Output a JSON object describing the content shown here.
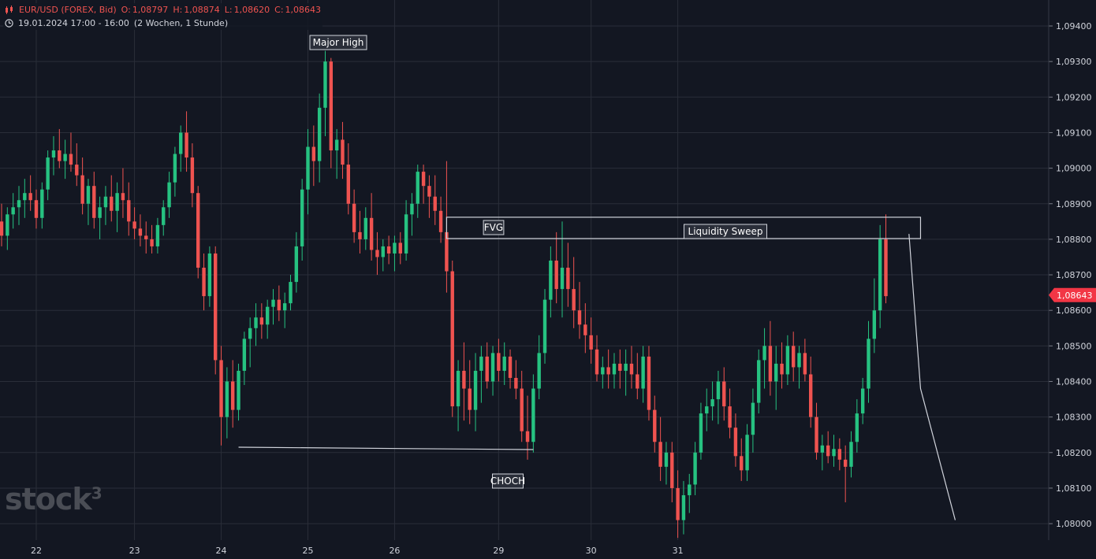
{
  "header": {
    "symbol": "EUR/USD (FOREX, Bid)",
    "open_label": "O:",
    "open": "1,08797",
    "high_label": "H:",
    "high": "1,08874",
    "low_label": "L:",
    "low": "1,08620",
    "close_label": "C:",
    "close": "1,08643",
    "range": "19.01.2024 17:00 - 16:00",
    "period": "(2 Wochen, 1 Stunde)"
  },
  "logo": {
    "text": "stock",
    "superscript": "3"
  },
  "colors": {
    "up": "#26c281",
    "down": "#ef5350",
    "background": "#131722",
    "grid": "#2a2e39",
    "text": "#d1d4dc"
  },
  "chart_data": {
    "type": "candlestick",
    "y_axis": {
      "ticks": [
        "1,09400",
        "1,09300",
        "1,09200",
        "1,09100",
        "1,09000",
        "1,08900",
        "1,08800",
        "1,08700",
        "1,08600",
        "1,08500",
        "1,08400",
        "1,08300",
        "1,08200",
        "1,08100",
        "1,08000"
      ],
      "tick_values": [
        1.094,
        1.093,
        1.092,
        1.091,
        1.09,
        1.089,
        1.088,
        1.087,
        1.086,
        1.085,
        1.084,
        1.083,
        1.082,
        1.081,
        1.08
      ],
      "range": [
        1.0797,
        1.0947
      ],
      "current_price_label": "1,08643",
      "current_price": 1.08643
    },
    "x_axis": {
      "ticks": [
        "22",
        "23",
        "24",
        "25",
        "26",
        "29",
        "30",
        "31"
      ],
      "tick_index": [
        6,
        23,
        38,
        53,
        68,
        86,
        102,
        117
      ]
    },
    "candles": [
      [
        1.0885,
        1.089,
        1.0878,
        1.0881
      ],
      [
        1.0881,
        1.0889,
        1.0877,
        1.0887
      ],
      [
        1.0887,
        1.0893,
        1.0883,
        1.0889
      ],
      [
        1.0889,
        1.0895,
        1.0884,
        1.0891
      ],
      [
        1.0891,
        1.0897,
        1.0886,
        1.0893
      ],
      [
        1.0893,
        1.0898,
        1.0888,
        1.0891
      ],
      [
        1.0891,
        1.0894,
        1.0883,
        1.0886
      ],
      [
        1.0886,
        1.0896,
        1.0883,
        1.0894
      ],
      [
        1.0894,
        1.0905,
        1.0891,
        1.0903
      ],
      [
        1.0903,
        1.0909,
        1.0898,
        1.0905
      ],
      [
        1.0905,
        1.0911,
        1.09,
        1.0902
      ],
      [
        1.0902,
        1.0908,
        1.0897,
        1.0904
      ],
      [
        1.0904,
        1.091,
        1.0899,
        1.0901
      ],
      [
        1.0901,
        1.0907,
        1.0895,
        1.0898
      ],
      [
        1.0898,
        1.0903,
        1.0887,
        1.089
      ],
      [
        1.089,
        1.0897,
        1.0884,
        1.0895
      ],
      [
        1.0895,
        1.0899,
        1.0883,
        1.0886
      ],
      [
        1.0886,
        1.0892,
        1.088,
        1.0889
      ],
      [
        1.0889,
        1.0895,
        1.0884,
        1.0892
      ],
      [
        1.0892,
        1.0898,
        1.0885,
        1.0888
      ],
      [
        1.0888,
        1.0896,
        1.0882,
        1.0893
      ],
      [
        1.0893,
        1.09,
        1.0886,
        1.0891
      ],
      [
        1.0891,
        1.0896,
        1.0881,
        1.0885
      ],
      [
        1.0885,
        1.0889,
        1.088,
        1.0883
      ],
      [
        1.0883,
        1.0887,
        1.0878,
        1.0881
      ],
      [
        1.0881,
        1.0885,
        1.0876,
        1.088
      ],
      [
        1.088,
        1.0884,
        1.0876,
        1.0878
      ],
      [
        1.0878,
        1.0886,
        1.0876,
        1.0884
      ],
      [
        1.0884,
        1.0891,
        1.0881,
        1.0889
      ],
      [
        1.0889,
        1.0899,
        1.0886,
        1.0896
      ],
      [
        1.0896,
        1.0906,
        1.0892,
        1.0904
      ],
      [
        1.0904,
        1.0912,
        1.0899,
        1.091
      ],
      [
        1.091,
        1.0916,
        1.0899,
        1.0903
      ],
      [
        1.0903,
        1.0907,
        1.0889,
        1.0893
      ],
      [
        1.0893,
        1.0895,
        1.0869,
        1.0872
      ],
      [
        1.0872,
        1.0876,
        1.086,
        1.0864
      ],
      [
        1.0864,
        1.0878,
        1.0861,
        1.0876
      ],
      [
        1.0876,
        1.0878,
        1.0842,
        1.0846
      ],
      [
        1.0846,
        1.085,
        1.0822,
        1.083
      ],
      [
        1.083,
        1.0844,
        1.0824,
        1.084
      ],
      [
        1.084,
        1.0846,
        1.0827,
        1.0832
      ],
      [
        1.0832,
        1.0845,
        1.0829,
        1.0843
      ],
      [
        1.0843,
        1.0854,
        1.0839,
        1.0852
      ],
      [
        1.0852,
        1.0858,
        1.0844,
        1.0855
      ],
      [
        1.0855,
        1.0862,
        1.085,
        1.0858
      ],
      [
        1.0858,
        1.0862,
        1.0852,
        1.0856
      ],
      [
        1.0856,
        1.0863,
        1.0852,
        1.0861
      ],
      [
        1.0861,
        1.0866,
        1.0856,
        1.0863
      ],
      [
        1.0863,
        1.0867,
        1.0857,
        1.086
      ],
      [
        1.086,
        1.0865,
        1.0855,
        1.0862
      ],
      [
        1.0862,
        1.087,
        1.086,
        1.0868
      ],
      [
        1.0868,
        1.0882,
        1.0865,
        1.0878
      ],
      [
        1.0878,
        1.0897,
        1.0874,
        1.0894
      ],
      [
        1.0894,
        1.0911,
        1.0887,
        1.0906
      ],
      [
        1.0906,
        1.0912,
        1.0895,
        1.0902
      ],
      [
        1.0902,
        1.0921,
        1.0896,
        1.0917
      ],
      [
        1.0917,
        1.0933,
        1.0909,
        1.093
      ],
      [
        1.093,
        1.0931,
        1.09,
        1.0905
      ],
      [
        1.0905,
        1.0911,
        1.0897,
        1.0908
      ],
      [
        1.0908,
        1.0913,
        1.0897,
        1.0901
      ],
      [
        1.0901,
        1.0907,
        1.0887,
        1.089
      ],
      [
        1.089,
        1.0894,
        1.0879,
        1.0882
      ],
      [
        1.0882,
        1.0888,
        1.0876,
        1.088
      ],
      [
        1.088,
        1.0889,
        1.0877,
        1.0886
      ],
      [
        1.0886,
        1.0893,
        1.0874,
        1.0877
      ],
      [
        1.0877,
        1.0882,
        1.087,
        1.0875
      ],
      [
        1.0875,
        1.088,
        1.0871,
        1.0878
      ],
      [
        1.0878,
        1.0881,
        1.0873,
        1.0876
      ],
      [
        1.0876,
        1.0881,
        1.0871,
        1.0879
      ],
      [
        1.0879,
        1.0882,
        1.0873,
        1.0876
      ]
    ]
  },
  "chart_data_2": {
    "candles_cont": [
      [
        1.0876,
        1.0891,
        1.0874,
        1.0887
      ],
      [
        1.0887,
        1.0893,
        1.0881,
        1.089
      ],
      [
        1.089,
        1.0901,
        1.0886,
        1.0899
      ],
      [
        1.0899,
        1.0901,
        1.089,
        1.0895
      ],
      [
        1.0895,
        1.0898,
        1.0886,
        1.0892
      ],
      [
        1.0892,
        1.0898,
        1.0884,
        1.0888
      ],
      [
        1.0888,
        1.0892,
        1.0879,
        1.0882
      ],
      [
        1.0882,
        1.0902,
        1.0865,
        1.0871
      ],
      [
        1.0871,
        1.0874,
        1.083,
        1.0833
      ],
      [
        1.0833,
        1.0846,
        1.0826,
        1.0843
      ],
      [
        1.0843,
        1.0851,
        1.0829,
        1.0838
      ],
      [
        1.0838,
        1.0846,
        1.0828,
        1.0832
      ],
      [
        1.0832,
        1.0848,
        1.0826,
        1.0843
      ],
      [
        1.0843,
        1.085,
        1.0834,
        1.0847
      ],
      [
        1.0847,
        1.0851,
        1.0838,
        1.084
      ],
      [
        1.084,
        1.085,
        1.0836,
        1.0848
      ],
      [
        1.0848,
        1.0852,
        1.084,
        1.0843
      ],
      [
        1.0843,
        1.0851,
        1.0839,
        1.0847
      ],
      [
        1.0847,
        1.0849,
        1.0838,
        1.0841
      ],
      [
        1.0841,
        1.0846,
        1.0835,
        1.0838
      ],
      [
        1.0838,
        1.0843,
        1.0823,
        1.0826
      ],
      [
        1.0826,
        1.0836,
        1.0818,
        1.0823
      ],
      [
        1.0823,
        1.0842,
        1.082,
        1.0838
      ],
      [
        1.0838,
        1.0853,
        1.0835,
        1.0848
      ],
      [
        1.0848,
        1.0866,
        1.0845,
        1.0863
      ],
      [
        1.0863,
        1.0878,
        1.0858,
        1.0874
      ],
      [
        1.0874,
        1.0882,
        1.0862,
        1.0866
      ],
      [
        1.0866,
        1.0885,
        1.0858,
        1.0872
      ],
      [
        1.0872,
        1.0879,
        1.0861,
        1.0866
      ],
      [
        1.0866,
        1.0875,
        1.0855,
        1.086
      ],
      [
        1.086,
        1.0868,
        1.0852,
        1.0856
      ],
      [
        1.0856,
        1.0862,
        1.0848,
        1.0853
      ],
      [
        1.0853,
        1.0858,
        1.0845,
        1.0849
      ],
      [
        1.0849,
        1.0853,
        1.084,
        1.0842
      ],
      [
        1.0842,
        1.0847,
        1.0838,
        1.0844
      ],
      [
        1.0844,
        1.0849,
        1.0838,
        1.0842
      ],
      [
        1.0842,
        1.0848,
        1.0838,
        1.0845
      ],
      [
        1.0845,
        1.0849,
        1.0838,
        1.0843
      ],
      [
        1.0843,
        1.0849,
        1.0836,
        1.0845
      ],
      [
        1.0845,
        1.085,
        1.0838,
        1.0842
      ],
      [
        1.0842,
        1.0848,
        1.0835,
        1.0838
      ],
      [
        1.0838,
        1.085,
        1.0834,
        1.0847
      ],
      [
        1.0847,
        1.085,
        1.0829,
        1.0832
      ],
      [
        1.0832,
        1.0836,
        1.082,
        1.0823
      ],
      [
        1.0823,
        1.083,
        1.0812,
        1.0816
      ],
      [
        1.0816,
        1.0823,
        1.0811,
        1.082
      ],
      [
        1.082,
        1.0823,
        1.0806,
        1.081
      ],
      [
        1.081,
        1.0815,
        1.0796,
        1.0801
      ],
      [
        1.0801,
        1.0812,
        1.0797,
        1.0808
      ],
      [
        1.0808,
        1.0814,
        1.0803,
        1.0811
      ],
      [
        1.0811,
        1.0823,
        1.0808,
        1.082
      ],
      [
        1.082,
        1.0834,
        1.0818,
        1.0831
      ],
      [
        1.0831,
        1.0838,
        1.0826,
        1.0833
      ],
      [
        1.0833,
        1.084,
        1.0829,
        1.0835
      ],
      [
        1.0835,
        1.0843,
        1.0828,
        1.084
      ],
      [
        1.084,
        1.0844,
        1.0829,
        1.0833
      ],
      [
        1.0833,
        1.0838,
        1.0824,
        1.0827
      ],
      [
        1.0827,
        1.0831,
        1.0816,
        1.0819
      ],
      [
        1.0819,
        1.0824,
        1.0812,
        1.0815
      ],
      [
        1.0815,
        1.0828,
        1.0812,
        1.0825
      ],
      [
        1.0825,
        1.0838,
        1.082,
        1.0834
      ],
      [
        1.0834,
        1.0849,
        1.0831,
        1.0846
      ],
      [
        1.0846,
        1.0855,
        1.0838,
        1.085
      ],
      [
        1.085,
        1.0857,
        1.0836,
        1.084
      ],
      [
        1.084,
        1.085,
        1.0832,
        1.0845
      ],
      [
        1.0845,
        1.0851,
        1.0838,
        1.0842
      ],
      [
        1.0842,
        1.0853,
        1.0839,
        1.085
      ],
      [
        1.085,
        1.0854,
        1.084,
        1.0844
      ],
      [
        1.0844,
        1.085,
        1.0838,
        1.0848
      ],
      [
        1.0848,
        1.0852,
        1.084,
        1.0842
      ],
      [
        1.0842,
        1.0847,
        1.0827,
        1.083
      ],
      [
        1.083,
        1.0834,
        1.0818,
        1.082
      ]
    ],
    "candles_end": [
      [
        1.082,
        1.0825,
        1.0815,
        1.0822
      ],
      [
        1.0822,
        1.0826,
        1.0817,
        1.0819
      ],
      [
        1.0819,
        1.0825,
        1.0816,
        1.0821
      ],
      [
        1.0821,
        1.0824,
        1.0815,
        1.0818
      ],
      [
        1.0818,
        1.0822,
        1.0806,
        1.0816
      ],
      [
        1.0816,
        1.0826,
        1.0813,
        1.0823
      ],
      [
        1.0823,
        1.0835,
        1.082,
        1.0831
      ],
      [
        1.0831,
        1.0841,
        1.0828,
        1.0838
      ],
      [
        1.0838,
        1.0857,
        1.0834,
        1.0852
      ],
      [
        1.0852,
        1.0869,
        1.0848,
        1.086
      ],
      [
        1.086,
        1.0884,
        1.0855,
        1.088
      ],
      [
        1.088,
        1.0887,
        1.0862,
        1.0864
      ]
    ]
  },
  "drawings": {
    "labels": [
      "Major High",
      "FVG",
      "Liquidity Sweep",
      "CHOCH"
    ],
    "zone": {
      "top": 1.08862,
      "bottom": 1.08802
    },
    "horizontal_line_level": 1.08215,
    "projection_levels": [
      1.08815,
      1.0838,
      1.0801
    ]
  }
}
